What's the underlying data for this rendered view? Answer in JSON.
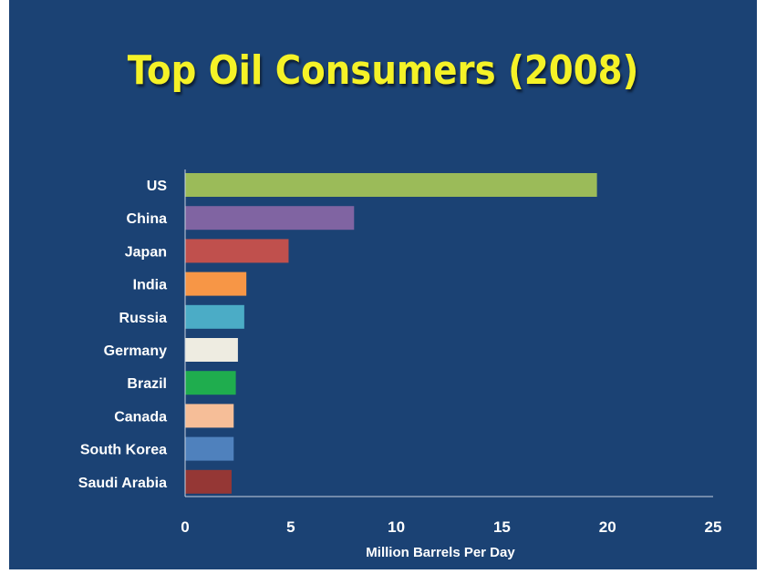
{
  "slide": {
    "title": "Top Oil Consumers (2008)"
  },
  "chart_data": {
    "type": "bar",
    "orientation": "horizontal",
    "title": "Top Oil Consumers (2008)",
    "xlabel": "Million Barrels Per Day",
    "ylabel": "",
    "xlim": [
      0,
      25
    ],
    "xticks": [
      "0",
      "5",
      "10",
      "15",
      "20",
      "25"
    ],
    "grid": false,
    "legend": "none",
    "categories": [
      "US",
      "China",
      "Japan",
      "India",
      "Russia",
      "Germany",
      "Brazil",
      "Canada",
      "South Korea",
      "Saudi Arabia"
    ],
    "values": [
      19.5,
      8.0,
      4.9,
      2.9,
      2.8,
      2.5,
      2.4,
      2.3,
      2.3,
      2.2
    ],
    "colors": [
      "#9bbb59",
      "#8064a2",
      "#c0504d",
      "#f79646",
      "#4bacc6",
      "#eeece1",
      "#1fad4e",
      "#f6be98",
      "#4f81bd",
      "#953735"
    ]
  }
}
